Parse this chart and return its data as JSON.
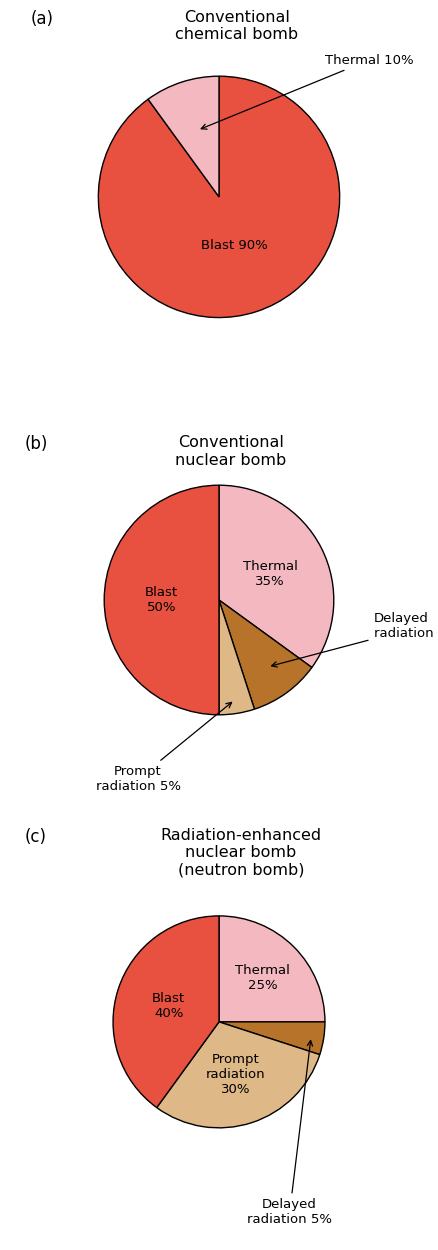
{
  "charts": [
    {
      "title": "Conventional\nchemical bomb",
      "label": "(a)",
      "slices": [
        {
          "label": "Blast 90%",
          "value": 90,
          "color": "#E85040"
        },
        {
          "label": "Thermal 10%",
          "value": 10,
          "color": "#F4B8C1"
        }
      ],
      "startangle": 90,
      "counterclock": false
    },
    {
      "title": "Conventional\nnuclear bomb",
      "label": "(b)",
      "slices": [
        {
          "label": "Thermal\n35%",
          "value": 35,
          "color": "#F4B8C1"
        },
        {
          "label": "Delayed radiation 10%",
          "value": 10,
          "color": "#B8732A"
        },
        {
          "label": "Prompt radiation 5%",
          "value": 5,
          "color": "#DEB887"
        },
        {
          "label": "Blast\n50%",
          "value": 50,
          "color": "#E85040"
        }
      ],
      "startangle": 90,
      "counterclock": false
    },
    {
      "title": "Radiation-enhanced\nnuclear bomb\n(neutron bomb)",
      "label": "(c)",
      "slices": [
        {
          "label": "Thermal\n25%",
          "value": 25,
          "color": "#F4B8C1"
        },
        {
          "label": "Delayed radiation 5%",
          "value": 5,
          "color": "#B8732A"
        },
        {
          "label": "Prompt\nradiation\n30%",
          "value": 30,
          "color": "#DEB887"
        },
        {
          "label": "Blast\n40%",
          "value": 40,
          "color": "#E85040"
        }
      ],
      "startangle": 90,
      "counterclock": false
    }
  ],
  "background_color": "#ffffff",
  "label_fontsize": 9.5,
  "title_fontsize": 11.5,
  "pie_label_fontsize": 9.5,
  "panel_label_fontsize": 12
}
